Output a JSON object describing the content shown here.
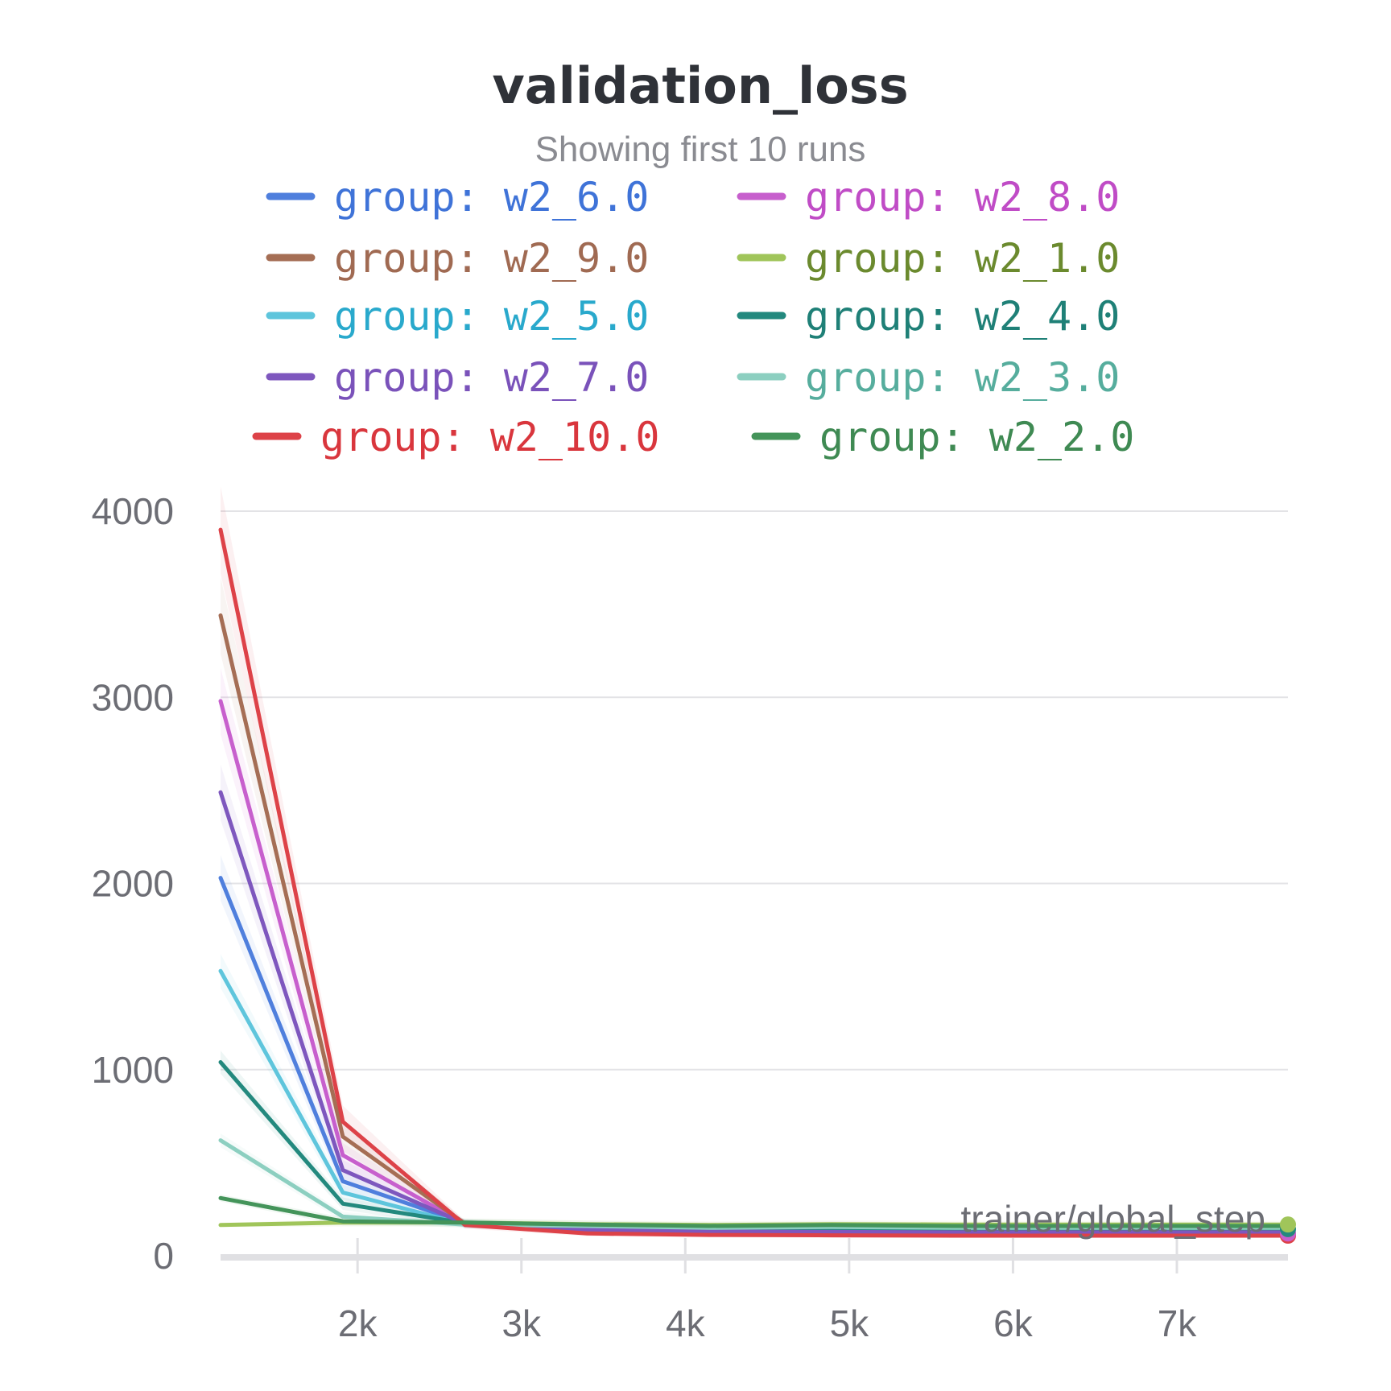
{
  "chart_data": {
    "type": "line",
    "title": "validation_loss",
    "subtitle": "Showing first 10 runs",
    "xlabel": "trainer/global_step",
    "ylabel": "",
    "x": [
      1164,
      1910,
      2656,
      3402,
      4148,
      4894,
      5640,
      6386,
      7132,
      7678
    ],
    "xlim": [
      1164,
      7678
    ],
    "ylim": [
      0,
      4000
    ],
    "xticks": [
      2000,
      3000,
      4000,
      5000,
      6000,
      7000
    ],
    "xtick_labels": [
      "2k",
      "3k",
      "4k",
      "5k",
      "6k",
      "7k"
    ],
    "yticks": [
      0,
      1000,
      2000,
      3000,
      4000
    ],
    "ytick_labels": [
      "0",
      "1000",
      "2000",
      "3000",
      "4000"
    ],
    "grid": true,
    "legend_position": "top",
    "series": [
      {
        "name": "group: w2_6.0",
        "color": "#4f7fdd",
        "text_color": "#3f73d8",
        "values": [
          2030,
          400,
          175,
          150,
          140,
          135,
          132,
          132,
          132,
          132
        ]
      },
      {
        "name": "group: w2_8.0",
        "color": "#c75fcd",
        "text_color": "#c04cc6",
        "values": [
          2980,
          540,
          170,
          140,
          125,
          122,
          120,
          120,
          120,
          120
        ]
      },
      {
        "name": "group: w2_9.0",
        "color": "#a56e55",
        "text_color": "#a06a52",
        "values": [
          3440,
          640,
          172,
          138,
          122,
          120,
          118,
          118,
          118,
          118
        ]
      },
      {
        "name": "group: w2_1.0",
        "color": "#a0c55a",
        "text_color": "#6b8a2e",
        "values": [
          165,
          178,
          178,
          170,
          165,
          170,
          168,
          168,
          168,
          168
        ]
      },
      {
        "name": "group: w2_5.0",
        "color": "#5ec5dc",
        "text_color": "#29a9cc",
        "values": [
          1530,
          340,
          168,
          152,
          142,
          140,
          138,
          138,
          138,
          138
        ]
      },
      {
        "name": "group: w2_4.0",
        "color": "#23897e",
        "text_color": "#1f8077",
        "values": [
          1040,
          280,
          175,
          152,
          145,
          145,
          143,
          143,
          143,
          143
        ]
      },
      {
        "name": "group: w2_7.0",
        "color": "#7e57be",
        "text_color": "#7a52ba",
        "values": [
          2490,
          460,
          172,
          142,
          130,
          128,
          126,
          126,
          126,
          126
        ]
      },
      {
        "name": "group: w2_3.0",
        "color": "#8ccfc0",
        "text_color": "#56ad9d",
        "values": [
          620,
          210,
          168,
          160,
          150,
          155,
          150,
          150,
          150,
          150
        ]
      },
      {
        "name": "group: w2_10.0",
        "color": "#dd4248",
        "text_color": "#d9363d",
        "values": [
          3900,
          720,
          165,
          120,
          112,
          110,
          108,
          108,
          108,
          108
        ]
      },
      {
        "name": "group: w2_2.0",
        "color": "#44945a",
        "text_color": "#3f8a53",
        "values": [
          310,
          185,
          178,
          168,
          160,
          165,
          160,
          160,
          160,
          160
        ]
      }
    ]
  }
}
